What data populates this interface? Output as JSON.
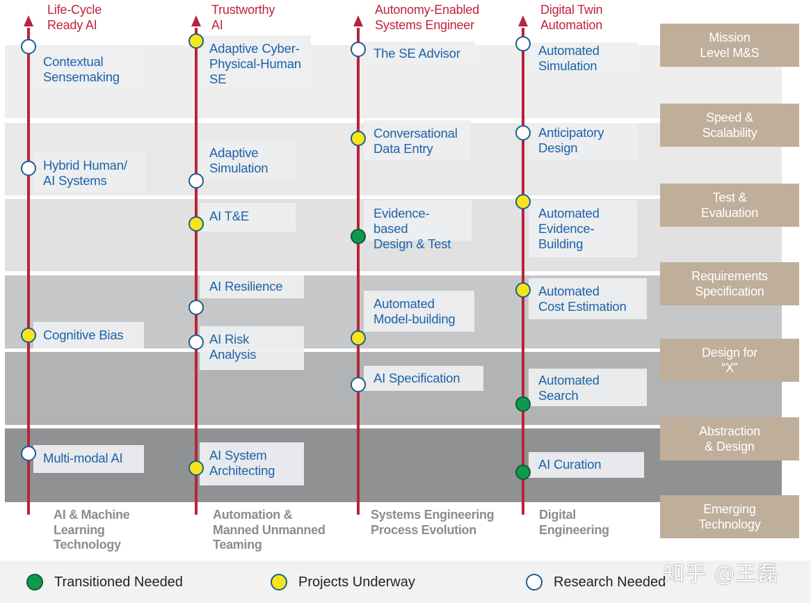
{
  "lanes": [
    {
      "title": "Life-Cycle\nReady AI",
      "footer": "AI & Machine\nLearning\nTechnology"
    },
    {
      "title": "Trustworthy\nAI",
      "footer": "Automation &\nManned Unmanned\nTeaming"
    },
    {
      "title": "Autonomy-Enabled\nSystems Engineer",
      "footer": "Systems Engineering\nProcess Evolution"
    },
    {
      "title": "Digital Twin\nAutomation",
      "footer": "Digital\nEngineering"
    }
  ],
  "categories": [
    "Mission\nLevel M&S",
    "Speed &\nScalability",
    "Test &\nEvaluation",
    "Requirements\nSpecification",
    "Design for\n“X”",
    "Abstraction\n& Design",
    "Emerging\nTechnology"
  ],
  "items": {
    "contextual_sensemaking": {
      "label": "Contextual\nSensemaking",
      "status": "research"
    },
    "hybrid_human_ai": {
      "label": "Hybrid Human/\nAI Systems",
      "status": "research"
    },
    "cognitive_bias": {
      "label": "Cognitive Bias",
      "status": "progress"
    },
    "multi_modal_ai": {
      "label": "Multi-modal AI",
      "status": "research"
    },
    "adaptive_cph_se": {
      "label": "Adaptive Cyber-\nPhysical-Human\nSE",
      "status": "progress"
    },
    "adaptive_simulation": {
      "label": "Adaptive\nSimulation",
      "status": "research"
    },
    "ai_te": {
      "label": "AI T&E",
      "status": "progress"
    },
    "ai_resilience": {
      "label": "AI Resilience",
      "status": "research"
    },
    "ai_risk_analysis": {
      "label": "AI Risk\nAnalysis",
      "status": "research"
    },
    "ai_system_architecting": {
      "label": "AI System\nArchitecting",
      "status": "progress"
    },
    "se_advisor": {
      "label": "The SE Advisor",
      "status": "research"
    },
    "conversational_data_entry": {
      "label": "Conversational\nData Entry",
      "status": "progress"
    },
    "evidence_design_test": {
      "label": "Evidence-based\nDesign & Test",
      "status": "transitioned"
    },
    "automated_model_building": {
      "label": "Automated\nModel-building",
      "status": "progress"
    },
    "ai_specification": {
      "label": "AI Specification",
      "status": "research"
    },
    "automated_simulation": {
      "label": "Automated\nSimulation",
      "status": "research"
    },
    "anticipatory_design": {
      "label": "Anticipatory\nDesign",
      "status": "research"
    },
    "automated_evidence_building": {
      "label": "Automated\nEvidence-\nBuilding",
      "status": "progress"
    },
    "automated_cost_estimation": {
      "label": "Automated\nCost Estimation",
      "status": "progress"
    },
    "automated_search": {
      "label": "Automated\nSearch",
      "status": "transitioned"
    },
    "ai_curation": {
      "label": "AI Curation",
      "status": "transitioned"
    }
  },
  "legend": {
    "transitioned": "Transitioned Needed",
    "progress": "Projects Underway",
    "research": "Research Needed"
  },
  "watermark": "知乎 @王磊",
  "colors": {
    "lane_line": "#b8243a",
    "title": "#c0223a",
    "item_text": "#1d63a6",
    "category_bg": "#bfae9a",
    "dot_progress": "#f6e51a",
    "dot_transitioned": "#0e9a4e"
  }
}
